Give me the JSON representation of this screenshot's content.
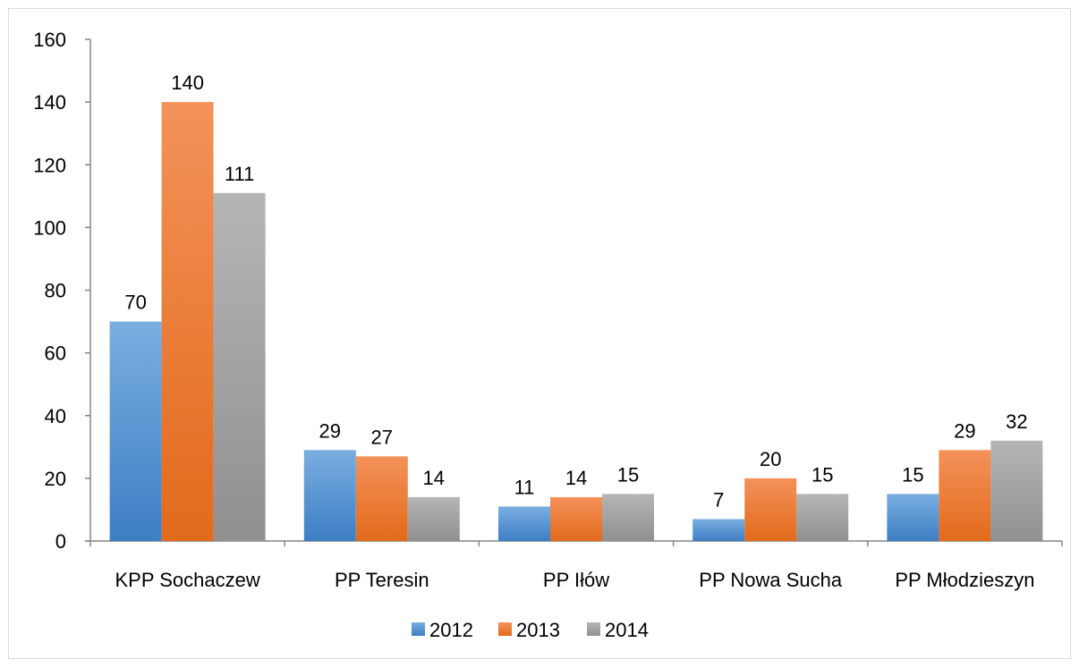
{
  "chart_data": {
    "type": "bar",
    "title": "",
    "xlabel": "",
    "ylabel": "",
    "categories": [
      "KPP Sochaczew",
      "PP Teresin",
      "PP Iłów",
      "PP Nowa Sucha",
      "PP Młodzieszyn"
    ],
    "series": [
      {
        "name": "2012",
        "values": [
          70,
          29,
          11,
          7,
          15
        ],
        "color": "#5b9bd5",
        "color_light": "#7aaee0",
        "color_dark": "#3d7ec4"
      },
      {
        "name": "2013",
        "values": [
          140,
          27,
          14,
          20,
          29
        ],
        "color": "#ed7d31",
        "color_light": "#f3925a",
        "color_dark": "#e26a1b"
      },
      {
        "name": "2014",
        "values": [
          111,
          14,
          15,
          15,
          32
        ],
        "color": "#a5a5a5",
        "color_light": "#b5b5b5",
        "color_dark": "#909090"
      }
    ],
    "ylim": [
      0,
      160
    ],
    "yticks": [
      "0",
      "20",
      "40",
      "60",
      "80",
      "100",
      "120",
      "140",
      "160"
    ],
    "data_labels": true,
    "grid": false,
    "legend": "bottom"
  }
}
